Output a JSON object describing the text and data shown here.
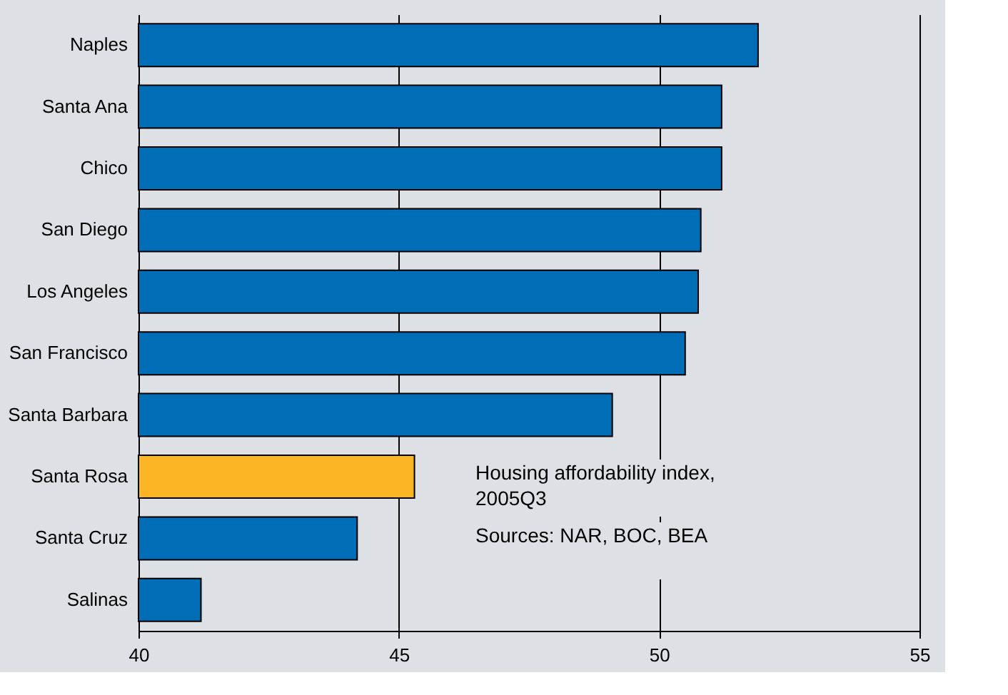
{
  "chart_data": {
    "type": "bar",
    "orientation": "horizontal",
    "categories": [
      "Naples",
      "Santa Ana",
      "Chico",
      "San Diego",
      "Los Angeles",
      "San Francisco",
      "Santa Barbara",
      "Santa Rosa",
      "Santa Cruz",
      "Salinas"
    ],
    "values": [
      51.9,
      51.2,
      51.2,
      50.8,
      50.75,
      50.5,
      49.1,
      45.3,
      44.2,
      41.2
    ],
    "colors": [
      "#006db7",
      "#006db7",
      "#006db7",
      "#006db7",
      "#006db7",
      "#006db7",
      "#006db7",
      "#fbb524",
      "#006db7",
      "#006db7"
    ],
    "xlim": [
      40,
      55
    ],
    "xticks": [
      40,
      45,
      50,
      55
    ],
    "grid": "x",
    "annotations": [
      "Housing affordability index,\n2005Q3",
      "Sources: NAR, BOC, BEA"
    ]
  }
}
